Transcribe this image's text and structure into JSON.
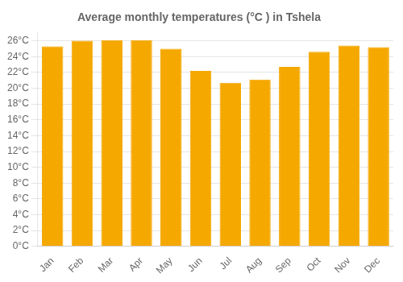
{
  "chart_data": {
    "type": "bar",
    "title": "Average monthly temperatures (°C ) in Tshela",
    "categories": [
      "Jan",
      "Feb",
      "Mar",
      "Apr",
      "May",
      "Jun",
      "Jul",
      "Aug",
      "Sep",
      "Oct",
      "Nov",
      "Dec"
    ],
    "values": [
      25.3,
      26.0,
      26.1,
      26.1,
      25.0,
      22.2,
      20.7,
      21.1,
      22.7,
      24.6,
      25.4,
      25.2
    ],
    "color": "#F5A800",
    "ylim": [
      0,
      27
    ],
    "yticks": [
      {
        "value": 0,
        "label": "0°C"
      },
      {
        "value": 2,
        "label": "2°C"
      },
      {
        "value": 4,
        "label": "4°C"
      },
      {
        "value": 6,
        "label": "6°C"
      },
      {
        "value": 8,
        "label": "8°C"
      },
      {
        "value": 10,
        "label": "10°C"
      },
      {
        "value": 12,
        "label": "12°C"
      },
      {
        "value": 14,
        "label": "14°C"
      },
      {
        "value": 16,
        "label": "16°C"
      },
      {
        "value": 18,
        "label": "18°C"
      },
      {
        "value": 20,
        "label": "20°C"
      },
      {
        "value": 22,
        "label": "22°C"
      },
      {
        "value": 24,
        "label": "24°C"
      },
      {
        "value": 26,
        "label": "26°C"
      }
    ],
    "grid": true
  }
}
